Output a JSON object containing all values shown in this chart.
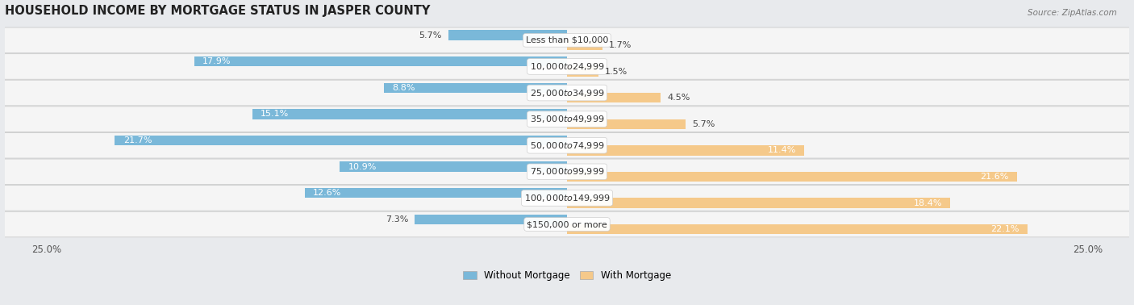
{
  "title": "HOUSEHOLD INCOME BY MORTGAGE STATUS IN JASPER COUNTY",
  "source": "Source: ZipAtlas.com",
  "categories": [
    "Less than $10,000",
    "$10,000 to $24,999",
    "$25,000 to $34,999",
    "$35,000 to $49,999",
    "$50,000 to $74,999",
    "$75,000 to $99,999",
    "$100,000 to $149,999",
    "$150,000 or more"
  ],
  "without_mortgage": [
    5.7,
    17.9,
    8.8,
    15.1,
    21.7,
    10.9,
    12.6,
    7.3
  ],
  "with_mortgage": [
    1.7,
    1.5,
    4.5,
    5.7,
    11.4,
    21.6,
    18.4,
    22.1
  ],
  "max_val": 25.0,
  "bar_color_blue": "#7ab8d9",
  "bar_color_orange": "#f5c98a",
  "bg_color": "#e8eaed",
  "row_bg_light": "#f5f5f5",
  "row_bg_dark": "#e8e8ea",
  "title_fontsize": 10.5,
  "label_fontsize": 8,
  "cat_fontsize": 8,
  "axis_label_fontsize": 8.5,
  "legend_fontsize": 8.5
}
